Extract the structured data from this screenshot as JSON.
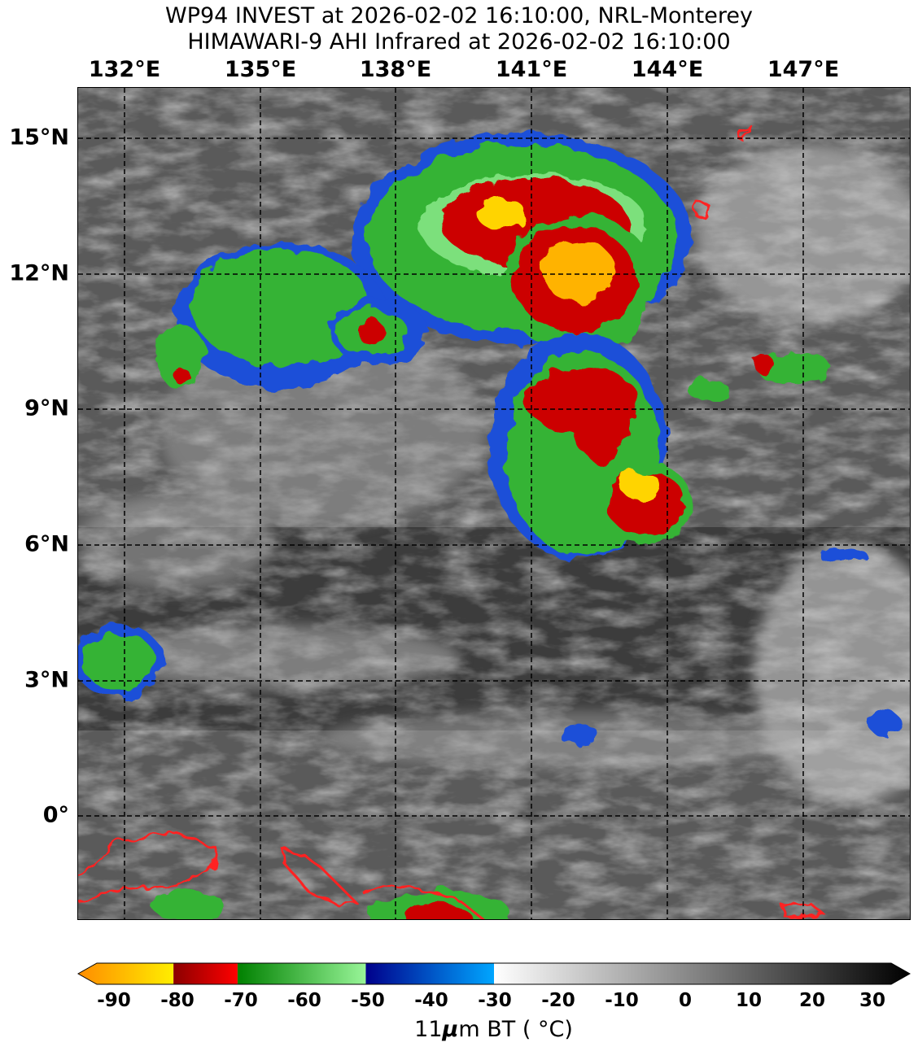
{
  "title_line1": "WP94 INVEST at 2026-02-02 16:10:00, NRL-Monterey",
  "title_line2": "HIMAWARI-9 AHI Infrared at 2026-02-02 16:10:00",
  "longitude_labels": [
    "132°E",
    "135°E",
    "138°E",
    "141°E",
    "144°E",
    "147°E"
  ],
  "latitude_labels": [
    "15°N",
    "12°N",
    "9°N",
    "6°N",
    "3°N",
    "0°"
  ],
  "colorbar": {
    "ticks": [
      "-90",
      "-80",
      "-70",
      "-60",
      "-50",
      "-40",
      "-30",
      "-20",
      "-10",
      "0",
      "10",
      "20",
      "30"
    ],
    "label_prefix": "11",
    "label_mu": "μ",
    "label_suffix": "m BT ( °C)",
    "segments": [
      {
        "from": -95,
        "to": -80,
        "colors": [
          "#ff8c00",
          "#ffee00"
        ]
      },
      {
        "from": -80,
        "to": -70,
        "colors": [
          "#8b0000",
          "#ff0000"
        ]
      },
      {
        "from": -70,
        "to": -50,
        "colors": [
          "#008000",
          "#98f598"
        ]
      },
      {
        "from": -50,
        "to": -30,
        "colors": [
          "#00008b",
          "#00a6ff"
        ]
      },
      {
        "from": -30,
        "to": 35,
        "colors": [
          "#ffffff",
          "#000000"
        ]
      }
    ]
  },
  "map_colors": {
    "background": "#5a5a5a",
    "coastline": "#ff2020",
    "grid": "#000000"
  }
}
